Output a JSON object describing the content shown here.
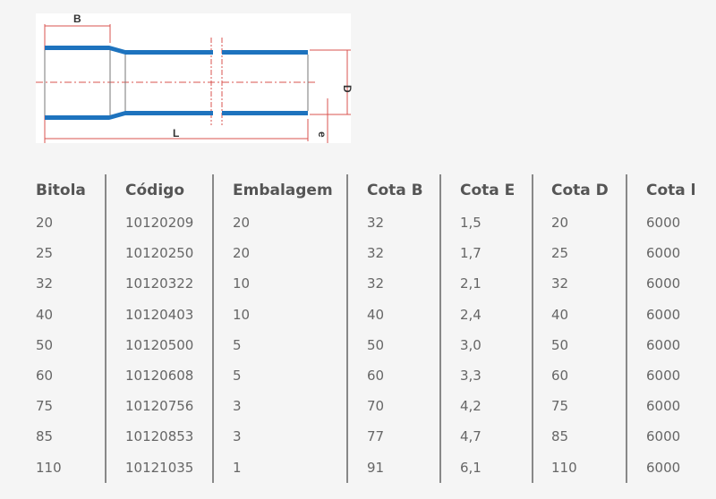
{
  "drawing": {
    "labels": {
      "b": "B",
      "l": "L",
      "d": "D",
      "e": "e"
    },
    "colors": {
      "pipe": "#1e73be",
      "dimension": "#d9534f"
    }
  },
  "table": {
    "headers": [
      "Bitola",
      "Código",
      "Embalagem",
      "Cota B",
      "Cota E",
      "Cota D",
      "Cota l"
    ],
    "rows": [
      [
        "20",
        "10120209",
        "20",
        "32",
        "1,5",
        "20",
        "6000"
      ],
      [
        "25",
        "10120250",
        "20",
        "32",
        "1,7",
        "25",
        "6000"
      ],
      [
        "32",
        "10120322",
        "10",
        "32",
        "2,1",
        "32",
        "6000"
      ],
      [
        "40",
        "10120403",
        "10",
        "40",
        "2,4",
        "40",
        "6000"
      ],
      [
        "50",
        "10120500",
        "5",
        "50",
        "3,0",
        "50",
        "6000"
      ],
      [
        "60",
        "10120608",
        "5",
        "60",
        "3,3",
        "60",
        "6000"
      ],
      [
        "75",
        "10120756",
        "3",
        "70",
        "4,2",
        "75",
        "6000"
      ],
      [
        "85",
        "10120853",
        "3",
        "77",
        "4,7",
        "85",
        "6000"
      ],
      [
        "110",
        "10121035",
        "1",
        "91",
        "6,1",
        "110",
        "6000"
      ]
    ]
  }
}
